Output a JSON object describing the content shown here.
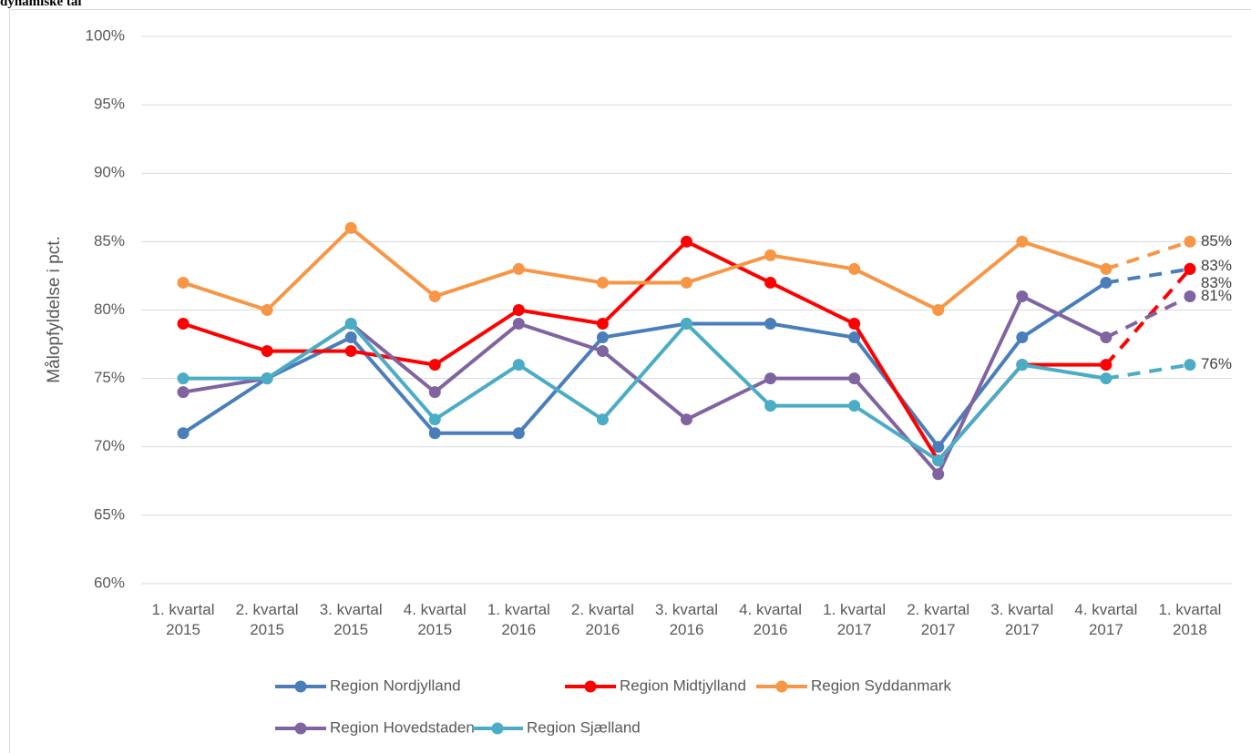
{
  "chart_data": {
    "type": "line",
    "title": "dynamiske tal",
    "y_label": "Målopfyldelse i pct.",
    "categories": [
      "1. kvartal 2015",
      "2. kvartal 2015",
      "3. kvartal 2015",
      "4. kvartal 2015",
      "1. kvartal 2016",
      "2. kvartal 2016",
      "3. kvartal 2016",
      "4. kvartal 2016",
      "1. kvartal 2017",
      "2. kvartal 2017",
      "3. kvartal 2017",
      "4. kvartal 2017",
      "1. kvartal 2018"
    ],
    "series": [
      {
        "name": "Region  Nordjylland",
        "color": "#4a7ebb",
        "values": [
          71,
          75,
          78,
          71,
          71,
          78,
          79,
          79,
          78,
          70,
          78,
          82,
          83
        ],
        "value_labels": [
          null,
          null,
          null,
          null,
          null,
          null,
          null,
          null,
          null,
          null,
          null,
          null,
          "83%"
        ]
      },
      {
        "name": "Region Midtjylland",
        "color": "#ff0000",
        "values": [
          79,
          77,
          77,
          76,
          80,
          79,
          85,
          82,
          79,
          69,
          76,
          76,
          83
        ],
        "value_labels": [
          null,
          null,
          null,
          null,
          null,
          null,
          null,
          null,
          null,
          null,
          null,
          null,
          "83%"
        ]
      },
      {
        "name": "Region Syddanmark",
        "color": "#f79646",
        "values": [
          82,
          80,
          86,
          81,
          83,
          82,
          82,
          84,
          83,
          80,
          85,
          83,
          85
        ],
        "value_labels": [
          null,
          null,
          null,
          null,
          null,
          null,
          null,
          null,
          null,
          null,
          null,
          null,
          "85%"
        ]
      },
      {
        "name": "Region Hovedstaden",
        "color": "#8064a2",
        "values": [
          74,
          75,
          79,
          74,
          79,
          77,
          72,
          75,
          75,
          68,
          81,
          78,
          81
        ],
        "value_labels": [
          null,
          null,
          null,
          null,
          null,
          null,
          null,
          null,
          null,
          null,
          null,
          null,
          "81%"
        ]
      },
      {
        "name": "Region Sjælland",
        "color": "#4bacc6",
        "values": [
          75,
          75,
          79,
          72,
          76,
          72,
          79,
          73,
          73,
          69,
          76,
          75,
          76
        ],
        "value_labels": [
          null,
          null,
          null,
          null,
          null,
          null,
          null,
          null,
          null,
          null,
          null,
          null,
          "76%"
        ]
      }
    ],
    "ylim": [
      60,
      100
    ],
    "yticks": [
      {
        "value": 60,
        "label": "60%"
      },
      {
        "value": 65,
        "label": "65%"
      },
      {
        "value": 70,
        "label": "70%"
      },
      {
        "value": 75,
        "label": "75%"
      },
      {
        "value": 80,
        "label": "80%"
      },
      {
        "value": 85,
        "label": "85%"
      },
      {
        "value": 90,
        "label": "90%"
      },
      {
        "value": 95,
        "label": "95%"
      },
      {
        "value": 100,
        "label": "100%"
      }
    ],
    "grid": true,
    "last_segment_dashed": true,
    "legend": "bottom"
  }
}
